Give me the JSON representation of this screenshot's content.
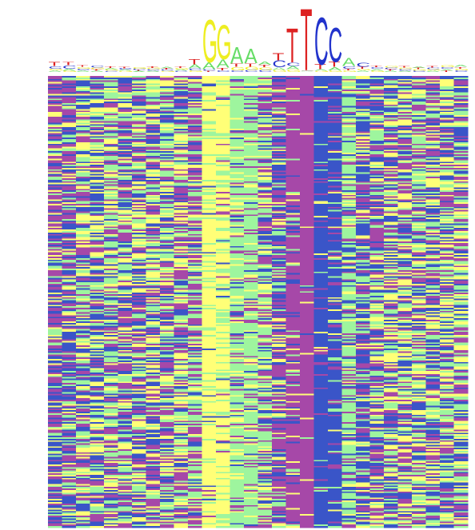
{
  "chart_data": {
    "type": "logo",
    "bases": [
      "A",
      "C",
      "G",
      "T"
    ],
    "logo_colors": [
      "#66dd66",
      "#2233cc",
      "#eeee22",
      "#dd2222"
    ],
    "heatmap_colors": [
      "#9ef59e",
      "#3a55c8",
      "#ffff77",
      "#a648a8"
    ],
    "heights": [
      [
        0.05,
        0.08,
        0.05,
        0.12
      ],
      [
        0.06,
        0.1,
        0.04,
        0.1
      ],
      [
        0.05,
        0.05,
        0.05,
        0.05
      ],
      [
        0.04,
        0.06,
        0.05,
        0.04
      ],
      [
        0.05,
        0.03,
        0.04,
        0.05
      ],
      [
        0.04,
        0.04,
        0.03,
        0.04
      ],
      [
        0.03,
        0.04,
        0.04,
        0.03
      ],
      [
        0.04,
        0.04,
        0.04,
        0.04
      ],
      [
        0.05,
        0.04,
        0.03,
        0.04
      ],
      [
        0.04,
        0.03,
        0.05,
        0.05
      ],
      [
        0.12,
        0.06,
        0.05,
        0.15
      ],
      [
        0.2,
        0.05,
        1.3,
        0.03
      ],
      [
        0.25,
        0.05,
        1.05,
        0.08
      ],
      [
        0.5,
        0.05,
        0.1,
        0.1
      ],
      [
        0.45,
        0.06,
        0.1,
        0.1
      ],
      [
        0.1,
        0.06,
        0.08,
        0.08
      ],
      [
        0.08,
        0.2,
        0.06,
        0.22
      ],
      [
        0.1,
        0.1,
        0.08,
        1.05
      ],
      [
        0.02,
        0.02,
        0.02,
        1.9
      ],
      [
        0.05,
        1.45,
        0.03,
        0.15
      ],
      [
        0.1,
        1.05,
        0.05,
        0.15
      ],
      [
        0.25,
        0.08,
        0.05,
        0.05
      ],
      [
        0.05,
        0.12,
        0.05,
        0.06
      ],
      [
        0.05,
        0.05,
        0.04,
        0.05
      ],
      [
        0.04,
        0.05,
        0.05,
        0.04
      ],
      [
        0.04,
        0.04,
        0.05,
        0.05
      ],
      [
        0.05,
        0.04,
        0.04,
        0.04
      ],
      [
        0.04,
        0.05,
        0.04,
        0.05
      ],
      [
        0.05,
        0.05,
        0.06,
        0.04
      ],
      [
        0.06,
        0.05,
        0.05,
        0.05
      ]
    ]
  }
}
